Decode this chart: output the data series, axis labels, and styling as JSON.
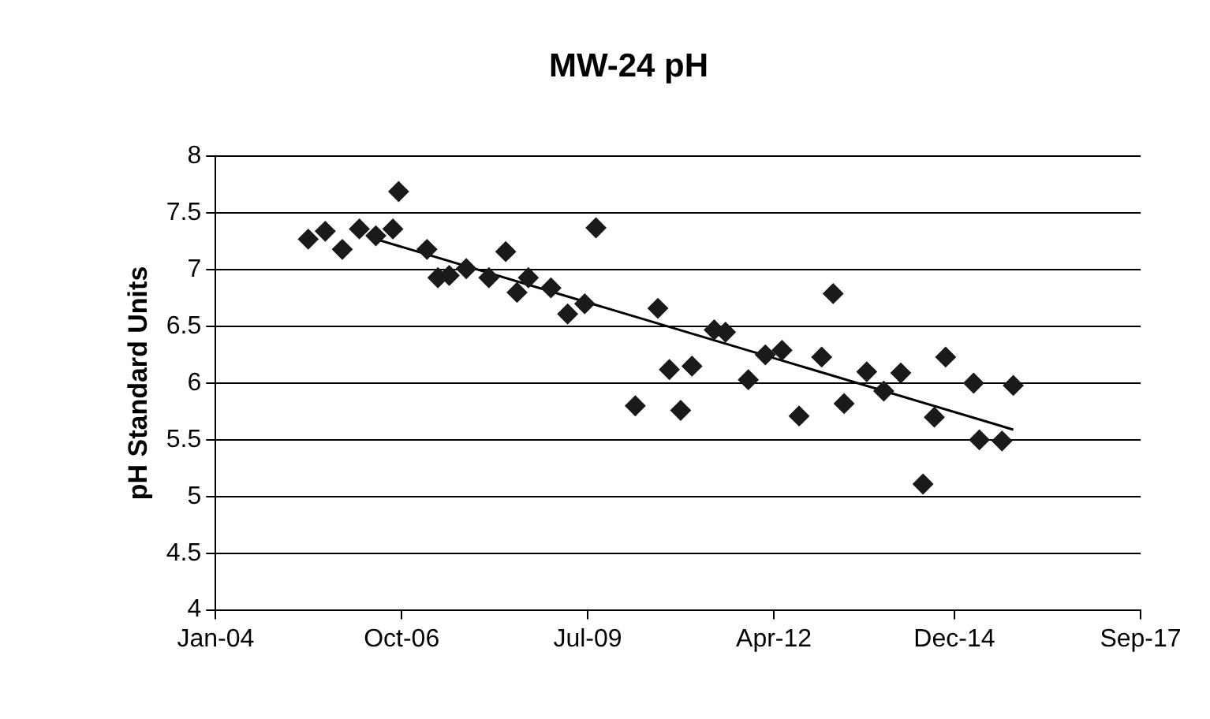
{
  "chart_data": {
    "type": "scatter",
    "title": "MW-24 pH",
    "ylabel": "pH Standard Units",
    "x": [
      "2005-05-15",
      "2005-08-15",
      "2005-11-15",
      "2006-02-15",
      "2006-05-15",
      "2006-08-15",
      "2006-09-15",
      "2007-02-15",
      "2007-04-15",
      "2007-06-15",
      "2007-09-15",
      "2008-01-15",
      "2008-04-15",
      "2008-06-15",
      "2008-08-15",
      "2008-12-15",
      "2009-03-15",
      "2009-06-15",
      "2009-08-15",
      "2010-03-15",
      "2010-07-15",
      "2010-09-15",
      "2010-11-15",
      "2011-01-15",
      "2011-05-15",
      "2011-07-15",
      "2011-11-15",
      "2012-02-15",
      "2012-05-15",
      "2012-08-15",
      "2012-12-15",
      "2013-02-15",
      "2013-04-15",
      "2013-08-15",
      "2013-11-15",
      "2014-02-15",
      "2014-06-15",
      "2014-08-15",
      "2014-10-15",
      "2015-03-15",
      "2015-04-15",
      "2015-08-15",
      "2015-10-15"
    ],
    "series": [
      {
        "type": "scatter",
        "color": "#1a1a1a",
        "marker": "diamond",
        "values": [
          7.27,
          7.34,
          7.18,
          7.36,
          7.3,
          7.36,
          7.69,
          7.18,
          6.93,
          6.95,
          7.01,
          6.93,
          7.16,
          6.8,
          6.93,
          6.84,
          6.61,
          6.7,
          7.37,
          5.8,
          6.66,
          6.12,
          5.76,
          6.15,
          6.47,
          6.45,
          6.03,
          6.25,
          6.29,
          5.71,
          6.23,
          6.79,
          5.82,
          6.1,
          5.93,
          6.09,
          5.11,
          5.7,
          6.23,
          6.0,
          5.5,
          5.49,
          5.98
        ]
      },
      {
        "type": "line",
        "color": "#000000",
        "marker": "none",
        "x": [
          "2006-05-15",
          "2015-10-15"
        ],
        "values": [
          7.27,
          5.59
        ]
      }
    ],
    "xlim": [
      "2004-01-01",
      "2017-09-01"
    ],
    "xticks": [
      {
        "value": "2004-01-01",
        "label": "Jan-04"
      },
      {
        "value": "2006-10-01",
        "label": "Oct-06"
      },
      {
        "value": "2009-07-01",
        "label": "Jul-09"
      },
      {
        "value": "2012-04-01",
        "label": "Apr-12"
      },
      {
        "value": "2014-12-01",
        "label": "Dec-14"
      },
      {
        "value": "2017-09-01",
        "label": "Sep-17"
      }
    ],
    "ylim": [
      4,
      8
    ],
    "yticks": [
      4,
      4.5,
      5,
      5.5,
      6,
      6.5,
      7,
      7.5,
      8
    ],
    "grid": "y",
    "legend": false
  }
}
